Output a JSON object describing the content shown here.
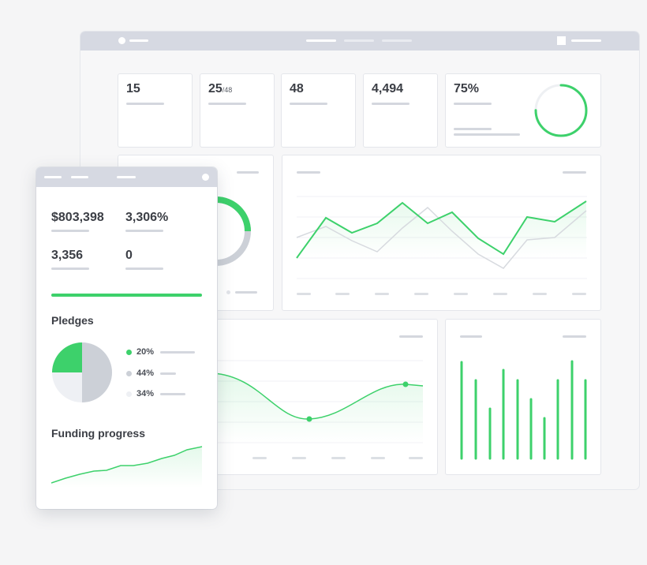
{
  "stats": [
    {
      "value": "15",
      "suffix": ""
    },
    {
      "value": "25",
      "suffix": "/48"
    },
    {
      "value": "48",
      "suffix": ""
    },
    {
      "value": "4,494",
      "suffix": ""
    },
    {
      "value": "75%",
      "suffix": ""
    }
  ],
  "progress_ring_fraction": 0.75,
  "mobile": {
    "metrics": [
      "$803,398",
      "3,306%",
      "3,356",
      "0"
    ],
    "pledges": {
      "title": "Pledges",
      "legend": [
        {
          "label": "20%",
          "color": "#3dd16b"
        },
        {
          "label": "44%",
          "color": "#ccd0d7"
        },
        {
          "label": "34%",
          "color": "#eef0f4"
        }
      ]
    },
    "funding": {
      "title": "Funding progress"
    }
  },
  "colors": {
    "accent": "#3dd16b",
    "muted": "#ccd0d7",
    "chrome": "#d6d9e2"
  }
}
